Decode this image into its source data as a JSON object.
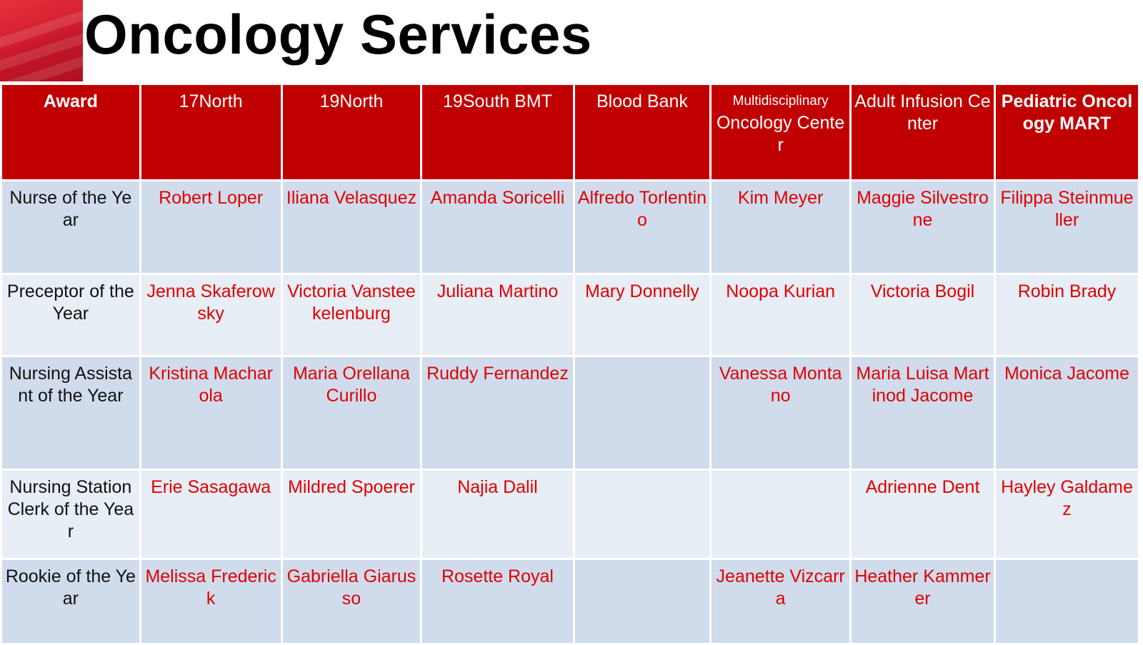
{
  "page": {
    "title": "Oncology Services"
  },
  "table": {
    "headers": {
      "award": "Award",
      "c1": "17North",
      "c2": "19North",
      "c3": "19South BMT",
      "c4": "Blood Bank",
      "c5_small": "Multidisciplinary",
      "c5": "Oncology Center",
      "c6": "Adult Infusion Center",
      "c7": "Pediatric Oncology MART"
    },
    "rows": [
      {
        "award": "Nurse of the Year",
        "cells": [
          "Robert Loper",
          "Iliana Velasquez",
          "Amanda Soricelli",
          "Alfredo Torlentino",
          "Kim Meyer",
          "Maggie Silvestrone",
          "Filippa Steinmueller"
        ]
      },
      {
        "award": "Preceptor of the Year",
        "cells": [
          "Jenna Skaferowsky",
          "Victoria Vansteekelenburg",
          "Juliana Martino",
          "Mary Donnelly",
          "Noopa Kurian",
          "Victoria Bogil",
          "Robin Brady"
        ]
      },
      {
        "award": "Nursing Assistant of the Year",
        "cells": [
          "Kristina Macharola",
          "Maria Orellana Curillo",
          "Ruddy Fernandez",
          "",
          "Vanessa Montano",
          "Maria Luisa Martinod Jacome",
          "Monica Jacome"
        ]
      },
      {
        "award": "Nursing Station Clerk of the Year",
        "cells": [
          "Erie Sasagawa",
          "Mildred Spoerer",
          "Najia Dalil",
          "",
          "",
          "Adrienne Dent",
          "Hayley Galdamez"
        ]
      },
      {
        "award": "Rookie of the Year",
        "cells": [
          "Melissa Frederick",
          "Gabriella Giarusso",
          "Rosette Royal",
          "",
          "Jeanette Vizcarra",
          "Heather Kammerer",
          ""
        ]
      }
    ]
  }
}
